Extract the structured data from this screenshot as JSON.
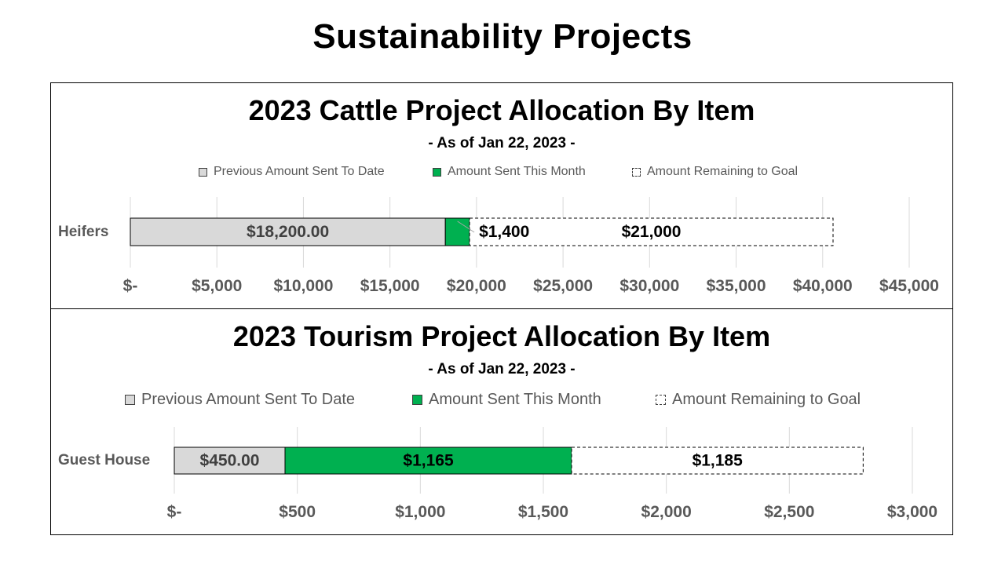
{
  "page": {
    "title": "Sustainability Projects"
  },
  "legend_labels": [
    "Previous Amount Sent To Date",
    "Amount Sent This Month",
    "Amount Remaining to Goal"
  ],
  "colors": {
    "previous": "#d9d9d9",
    "this_month": "#00b050",
    "remaining": "#ffffff",
    "grid": "#d9d9d9",
    "axis_text": "#595959"
  },
  "chart_data": [
    {
      "type": "bar",
      "orientation": "horizontal",
      "stacked": true,
      "title": "2023 Cattle Project Allocation By Item",
      "subtitle": "- As of Jan 22, 2023 -",
      "categories": [
        "Heifers"
      ],
      "series": [
        {
          "name": "Previous Amount Sent To Date",
          "values": [
            18200
          ],
          "data_labels": [
            "$18,200.00"
          ]
        },
        {
          "name": "Amount Sent This Month",
          "values": [
            1400
          ],
          "data_labels": [
            "$1,400"
          ]
        },
        {
          "name": "Amount Remaining to Goal",
          "values": [
            21000
          ],
          "data_labels": [
            "$21,000"
          ]
        }
      ],
      "xlim": [
        0,
        45000
      ],
      "tick_values": [
        0,
        5000,
        10000,
        15000,
        20000,
        25000,
        30000,
        35000,
        40000,
        45000
      ],
      "tick_labels": [
        "$-",
        "$5,000",
        "$10,000",
        "$15,000",
        "$20,000",
        "$25,000",
        "$30,000",
        "$35,000",
        "$40,000",
        "$45,000"
      ],
      "grid": true,
      "legend_position": "top"
    },
    {
      "type": "bar",
      "orientation": "horizontal",
      "stacked": true,
      "title": "2023 Tourism Project Allocation By Item",
      "subtitle": "- As of Jan 22, 2023 -",
      "categories": [
        "Guest House"
      ],
      "series": [
        {
          "name": "Previous Amount Sent To Date",
          "values": [
            450
          ],
          "data_labels": [
            "$450.00"
          ]
        },
        {
          "name": "Amount Sent This Month",
          "values": [
            1165
          ],
          "data_labels": [
            "$1,165"
          ]
        },
        {
          "name": "Amount Remaining to Goal",
          "values": [
            1185
          ],
          "data_labels": [
            "$1,185"
          ]
        }
      ],
      "xlim": [
        0,
        3000
      ],
      "tick_values": [
        0,
        500,
        1000,
        1500,
        2000,
        2500,
        3000
      ],
      "tick_labels": [
        "$-",
        "$500",
        "$1,000",
        "$1,500",
        "$2,000",
        "$2,500",
        "$3,000"
      ],
      "grid": true,
      "legend_position": "top"
    }
  ]
}
